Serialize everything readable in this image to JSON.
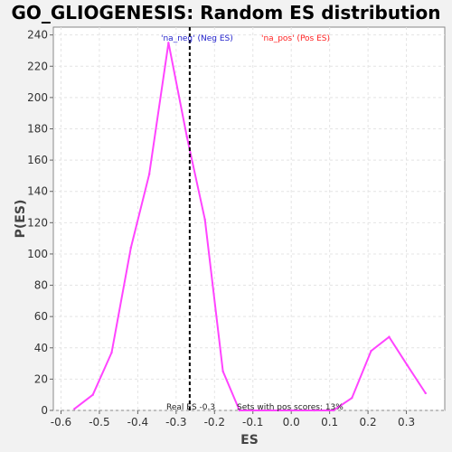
{
  "chart_data": {
    "type": "line",
    "title": "GO_GLIOGENESIS: Random ES distribution",
    "xlabel": "ES",
    "ylabel": "P(ES)",
    "xlim": [
      -0.62,
      0.4
    ],
    "ylim": [
      0,
      245
    ],
    "x_ticks": [
      -0.6,
      -0.5,
      -0.4,
      -0.3,
      -0.2,
      -0.1,
      0.0,
      0.1,
      0.2,
      0.3
    ],
    "x_tick_labels": [
      "-0.6",
      "-0.5",
      "-0.4",
      "-0.3",
      "-0.2",
      "-0.1",
      "0.0",
      "0.1",
      "0.2",
      "0.3"
    ],
    "y_ticks": [
      0,
      20,
      40,
      60,
      80,
      100,
      120,
      140,
      160,
      180,
      200,
      220,
      240
    ],
    "y_tick_labels": [
      "0",
      "20",
      "40",
      "60",
      "80",
      "100",
      "120",
      "140",
      "160",
      "180",
      "200",
      "220",
      "240"
    ],
    "grid": true,
    "series": [
      {
        "x": [
          -0.565,
          -0.517,
          -0.468,
          -0.418,
          -0.37,
          -0.32,
          -0.272,
          -0.225,
          -0.178,
          -0.135,
          -0.085,
          0.0,
          0.06,
          0.11,
          0.158,
          0.208,
          0.255,
          0.302,
          0.35
        ],
        "y": [
          1,
          10,
          37,
          104,
          151,
          235,
          175,
          122,
          25,
          0,
          0,
          0,
          0,
          0,
          8,
          38,
          47,
          29,
          11
        ],
        "color": "#ff44ff"
      }
    ],
    "real_es": -0.2646,
    "legend": [
      {
        "label": "'na_neg' (Neg ES)",
        "color": "#2222cc"
      },
      {
        "label": "'na_pos' (Pos ES)",
        "color": "#ff2222"
      }
    ],
    "annotations": {
      "real_es_label": "Real ES -0.3",
      "pos_scores_label": "Sets with pos scores: 13%"
    }
  }
}
